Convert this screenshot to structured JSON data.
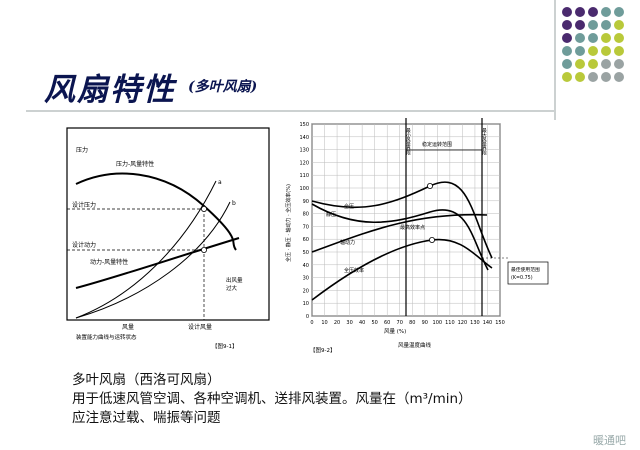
{
  "slide": {
    "title": "风扇特性",
    "subtitle": "(多叶风扇)",
    "body_lines": [
      "多叶风扇（西洛可风扇）",
      "用于低速风管空调、各种空调机、送排风装置。风量在（m³/min）",
      "应注意过载、喘振等问题"
    ],
    "watermark": "暖通吧"
  },
  "colors": {
    "title": "#0b1550",
    "dot_purple": "#4a2a6e",
    "dot_teal": "#6f9c9a",
    "dot_lime": "#b9c93a",
    "dot_gray": "#9aa3a3"
  },
  "left_chart": {
    "y_top_label": "压力",
    "design_pressure_label": "设计压力",
    "design_power_label": "设计动力",
    "pressure_curve_label": "压力-风量特性",
    "power_curve_label": "动力-风量特性",
    "x_label": "风量",
    "design_flow_label": "设计风量",
    "duct_label": "出风量\n过大",
    "point_a": "a",
    "point_b": "b",
    "caption": "装置能力曲线与运转状态",
    "fig_label": "【图9-1】"
  },
  "right_chart": {
    "y_label": "全压 · 静压 · 轴动力 · 全压效率(%)",
    "y_ticks": [
      "0",
      "10",
      "20",
      "30",
      "40",
      "50",
      "60",
      "70",
      "80",
      "90",
      "100",
      "110",
      "120",
      "130",
      "140",
      "150"
    ],
    "x_ticks": [
      "0",
      "10",
      "20",
      "30",
      "40",
      "50",
      "60",
      "70",
      "80",
      "90",
      "100",
      "110",
      "120",
      "130",
      "140",
      "150"
    ],
    "x_label": "风量 (%)",
    "caption": "风量温度曲线",
    "fig_label": "【图9-2】",
    "left_vline_label": "最小风量界限",
    "right_vline_label": "最大风量界限",
    "stable_range_label": "稳定运转范围",
    "total_pressure_label": "全压",
    "static_pressure_label": "静压",
    "shaft_power_label": "轴动力",
    "efficiency_label": "全压效率",
    "max_eff_label": "最高效率点",
    "right_box_label": "最佳使用范围\n(K=0.75)"
  }
}
